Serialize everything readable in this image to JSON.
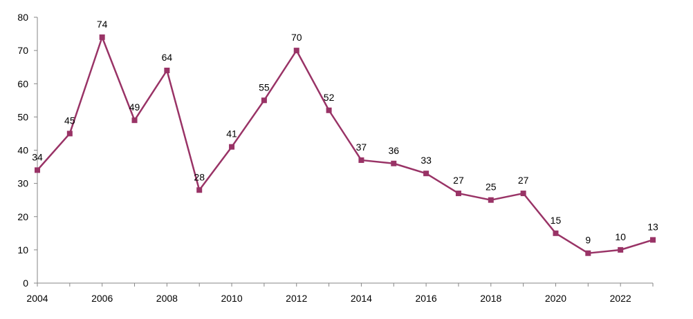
{
  "chart_data": {
    "type": "line",
    "title": "",
    "xlabel": "",
    "ylabel": "",
    "grid": false,
    "legend": "none",
    "x": [
      2004,
      2005,
      2006,
      2007,
      2008,
      2009,
      2010,
      2011,
      2012,
      2013,
      2014,
      2015,
      2016,
      2017,
      2018,
      2019,
      2020,
      2021,
      2022,
      2023
    ],
    "xticks": [
      2004,
      2006,
      2008,
      2010,
      2012,
      2014,
      2016,
      2018,
      2020,
      2022
    ],
    "xtick_labels": [
      "2004",
      "2006",
      "2008",
      "2010",
      "2012",
      "2014",
      "2016",
      "2018",
      "2020",
      "2022"
    ],
    "yticks": [
      0,
      10,
      20,
      30,
      40,
      50,
      60,
      70,
      80
    ],
    "ytick_labels": [
      "0",
      "10",
      "20",
      "30",
      "40",
      "50",
      "60",
      "70",
      "80"
    ],
    "ylim": [
      0,
      80
    ],
    "xlim": [
      2004,
      2023
    ],
    "series": [
      {
        "color": "#993366",
        "marker": "square",
        "values": [
          34,
          45,
          74,
          49,
          64,
          28,
          41,
          55,
          70,
          52,
          37,
          36,
          33,
          27,
          25,
          27,
          15,
          9,
          10,
          13
        ],
        "labels": [
          "34",
          "45",
          "74",
          "49",
          "64",
          "28",
          "41",
          "55",
          "70",
          "52",
          "37",
          "36",
          "33",
          "27",
          "25",
          "27",
          "15",
          "9",
          "10",
          "13"
        ]
      }
    ]
  }
}
